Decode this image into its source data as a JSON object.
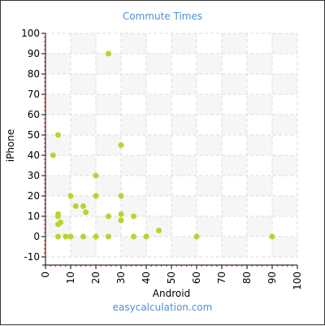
{
  "footer": "easycalculation.com",
  "colors": {
    "point": "#b7d432",
    "title": "#4a90d9",
    "grid": "#dddddd",
    "band": "#f6f6f6",
    "axis": "#000000",
    "minor_tick": "#cc0000"
  },
  "chart_data": {
    "type": "scatter",
    "title": "Commute Times",
    "xlabel": "Android",
    "ylabel": "iPhone",
    "xlim": [
      0,
      100
    ],
    "ylim": [
      -10,
      100
    ],
    "x_ticks": [
      0,
      10,
      20,
      30,
      40,
      50,
      60,
      70,
      80,
      90,
      100
    ],
    "y_ticks": [
      -10,
      0,
      10,
      20,
      30,
      40,
      50,
      60,
      70,
      80,
      90,
      100
    ],
    "grid": true,
    "series": [
      {
        "points": [
          [
            25,
            90
          ],
          [
            5,
            50
          ],
          [
            3,
            40
          ],
          [
            30,
            45
          ],
          [
            20,
            30
          ],
          [
            10,
            20
          ],
          [
            20,
            20
          ],
          [
            30,
            20
          ],
          [
            12,
            15
          ],
          [
            15,
            15
          ],
          [
            16,
            12
          ],
          [
            5,
            11
          ],
          [
            5,
            10
          ],
          [
            6,
            7
          ],
          [
            5,
            6
          ],
          [
            25,
            10
          ],
          [
            30,
            11
          ],
          [
            30,
            8
          ],
          [
            35,
            10
          ],
          [
            45,
            3
          ],
          [
            5,
            0
          ],
          [
            8,
            0
          ],
          [
            10,
            0
          ],
          [
            15,
            0
          ],
          [
            20,
            0
          ],
          [
            25,
            0
          ],
          [
            35,
            0
          ],
          [
            40,
            0
          ],
          [
            60,
            0
          ],
          [
            90,
            0
          ]
        ]
      }
    ]
  }
}
